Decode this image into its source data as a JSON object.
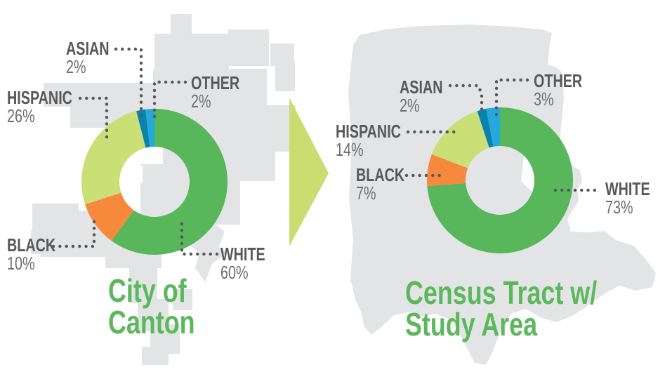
{
  "colors": {
    "map_silhouette": "#e3e4e5",
    "label_text": "#58585a",
    "pct_text": "#6d6e71",
    "title_green": "#5cb85c",
    "arrow": "#cbdc71",
    "leader_dots": "#58585a"
  },
  "chart_data": [
    {
      "type": "donut",
      "title": "City of Canton",
      "title_lines": [
        "City of",
        "Canton"
      ],
      "categories": [
        "WHITE",
        "BLACK",
        "HISPANIC",
        "ASIAN",
        "OTHER"
      ],
      "values": [
        60,
        10,
        26,
        2,
        2
      ],
      "unit": "%",
      "segments": [
        {
          "label": "WHITE",
          "pct": 60,
          "color": "#57b75a"
        },
        {
          "label": "BLACK",
          "pct": 10,
          "color": "#f6893c"
        },
        {
          "label": "HISPANIC",
          "pct": 26,
          "color": "#cbdf77"
        },
        {
          "label": "ASIAN",
          "pct": 2,
          "color": "#0883ad"
        },
        {
          "label": "OTHER",
          "pct": 2,
          "color": "#25a9dc"
        }
      ],
      "callouts": {
        "asian": {
          "label": "ASIAN",
          "value": "2%"
        },
        "other": {
          "label": "OTHER",
          "value": "2%"
        },
        "hispanic": {
          "label": "HISPANIC",
          "value": "26%"
        },
        "black": {
          "label": "BLACK",
          "value": "10%"
        },
        "white": {
          "label": "WHITE",
          "value": "60%"
        }
      }
    },
    {
      "type": "donut",
      "title": "Census Tract w/ Study Area",
      "title_lines": [
        "Census Tract w/",
        "Study Area"
      ],
      "categories": [
        "WHITE",
        "BLACK",
        "HISPANIC",
        "ASIAN",
        "OTHER"
      ],
      "values": [
        73,
        7,
        14,
        2,
        3
      ],
      "unit": "%",
      "segments": [
        {
          "label": "WHITE",
          "pct": 73,
          "color": "#57b75a"
        },
        {
          "label": "BLACK",
          "pct": 7,
          "color": "#f6893c"
        },
        {
          "label": "HISPANIC",
          "pct": 14,
          "color": "#cbdf77"
        },
        {
          "label": "ASIAN",
          "pct": 2,
          "color": "#0883ad"
        },
        {
          "label": "OTHER",
          "pct": 3,
          "color": "#25a9dc"
        }
      ],
      "callouts": {
        "asian": {
          "label": "ASIAN",
          "value": "2%"
        },
        "other": {
          "label": "OTHER",
          "value": "3%"
        },
        "hispanic": {
          "label": "HISPANIC",
          "value": "14%"
        },
        "black": {
          "label": "BLACK",
          "value": "7%"
        },
        "white": {
          "label": "WHITE",
          "value": "73%"
        }
      }
    }
  ]
}
